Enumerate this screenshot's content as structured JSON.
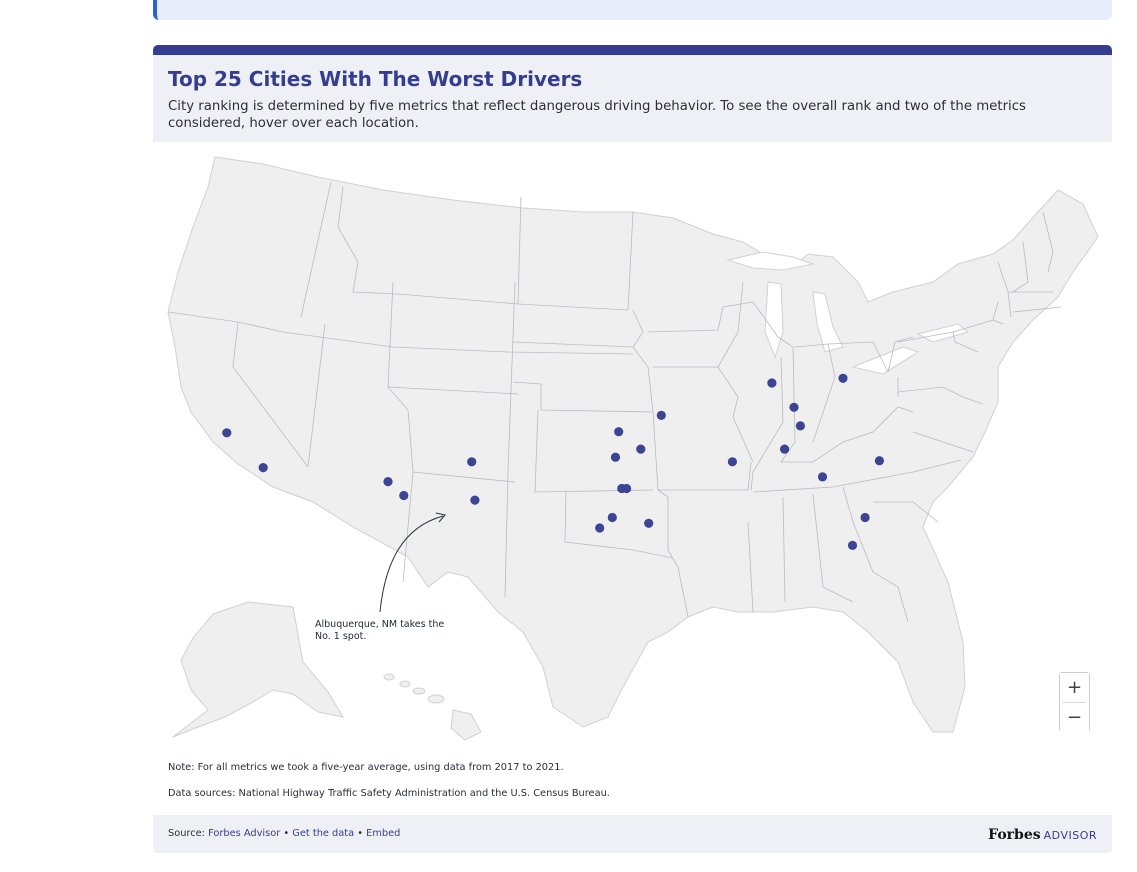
{
  "header": {
    "title": "Top 25 Cities With The Worst Drivers",
    "subtitle": "City ranking is determined by five metrics that reflect dangerous driving behavior. To see the overall rank and two of the metrics considered, hover over each location."
  },
  "annotation": {
    "line1": "Albuquerque, NM takes the",
    "line2": "No. 1 spot."
  },
  "zoom": {
    "in_label": "+",
    "out_label": "−"
  },
  "notes": {
    "note": "Note: For all metrics we took a five-year average, using data from 2017 to 2021.",
    "sources": "Data sources: National Highway Traffic Safety Administration and the U.S. Census Bureau."
  },
  "footer": {
    "source_prefix": "Source:",
    "source_name": "Forbes Advisor",
    "sep1": "•",
    "get_data": "Get the data",
    "sep2": "•",
    "embed": "Embed",
    "brand_main": "Forbes",
    "brand_sub": "ADVISOR"
  },
  "colors": {
    "accent": "#343d8f",
    "land": "#efefef",
    "border": "#b8bbc2",
    "marker": "#3c4494"
  },
  "map": {
    "markers": [
      {
        "lon": -122.1,
        "lat": 37.6
      },
      {
        "lon": -119.8,
        "lat": 34.6
      },
      {
        "lon": -111.9,
        "lat": 33.4
      },
      {
        "lon": -110.9,
        "lat": 32.2
      },
      {
        "lon": -106.6,
        "lat": 35.1
      },
      {
        "lon": -106.4,
        "lat": 31.8
      },
      {
        "lon": -97.3,
        "lat": 37.7
      },
      {
        "lon": -97.5,
        "lat": 35.5
      },
      {
        "lon": -95.9,
        "lat": 36.2
      },
      {
        "lon": -97.1,
        "lat": 32.8
      },
      {
        "lon": -96.8,
        "lat": 32.8
      },
      {
        "lon": -97.7,
        "lat": 30.3
      },
      {
        "lon": -98.5,
        "lat": 29.4
      },
      {
        "lon": -95.4,
        "lat": 29.8
      },
      {
        "lon": -94.6,
        "lat": 39.1
      },
      {
        "lon": -87.6,
        "lat": 41.9
      },
      {
        "lon": -83.1,
        "lat": 42.3
      },
      {
        "lon": -86.2,
        "lat": 39.8
      },
      {
        "lon": -85.8,
        "lat": 38.2
      },
      {
        "lon": -86.8,
        "lat": 36.2
      },
      {
        "lon": -90.1,
        "lat": 35.1
      },
      {
        "lon": -84.4,
        "lat": 33.8
      },
      {
        "lon": -80.8,
        "lat": 35.2
      },
      {
        "lon": -81.7,
        "lat": 30.3
      },
      {
        "lon": -82.5,
        "lat": 27.9
      }
    ]
  }
}
